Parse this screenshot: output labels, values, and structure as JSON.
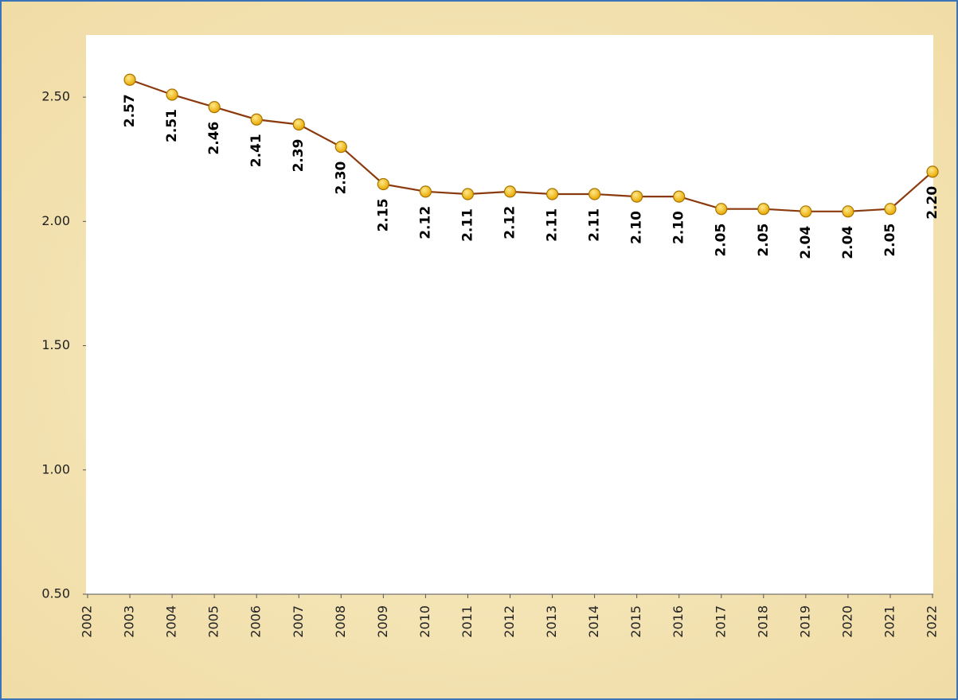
{
  "chart_data": {
    "type": "line",
    "x": [
      2003,
      2004,
      2005,
      2006,
      2007,
      2008,
      2009,
      2010,
      2011,
      2012,
      2013,
      2014,
      2015,
      2016,
      2017,
      2018,
      2019,
      2020,
      2021,
      2022
    ],
    "series": [
      {
        "color": "#8b3a0e",
        "values": [
          2.57,
          2.51,
          2.46,
          2.41,
          2.39,
          2.3,
          2.15,
          2.12,
          2.11,
          2.12,
          2.11,
          2.11,
          2.1,
          2.1,
          2.05,
          2.05,
          2.04,
          2.04,
          2.05,
          2.2
        ],
        "value_labels": [
          "2.57",
          "2.51",
          "2.46",
          "2.41",
          "2.39",
          "2.30",
          "2.15",
          "2.12",
          "2.11",
          "2.12",
          "2.11",
          "2.11",
          "2.10",
          "2.10",
          "2.05",
          "2.05",
          "2.04",
          "2.04",
          "2.05",
          "2.20"
        ]
      }
    ],
    "marker_color": "#f5bd1f",
    "xlim": [
      2002,
      2022
    ],
    "xticks": [
      2002,
      2003,
      2004,
      2005,
      2006,
      2007,
      2008,
      2009,
      2010,
      2011,
      2012,
      2013,
      2014,
      2015,
      2016,
      2017,
      2018,
      2019,
      2020,
      2021,
      2022
    ],
    "ylim": [
      0.5,
      2.75
    ],
    "yticks": [
      {
        "value": 0.5,
        "label": "0.50"
      },
      {
        "value": 1,
        "label": "1.00"
      },
      {
        "value": 1.5,
        "label": "1.50"
      },
      {
        "value": 2,
        "label": "2.00"
      },
      {
        "value": 2.5,
        "label": "2.50"
      }
    ],
    "grid": false
  }
}
